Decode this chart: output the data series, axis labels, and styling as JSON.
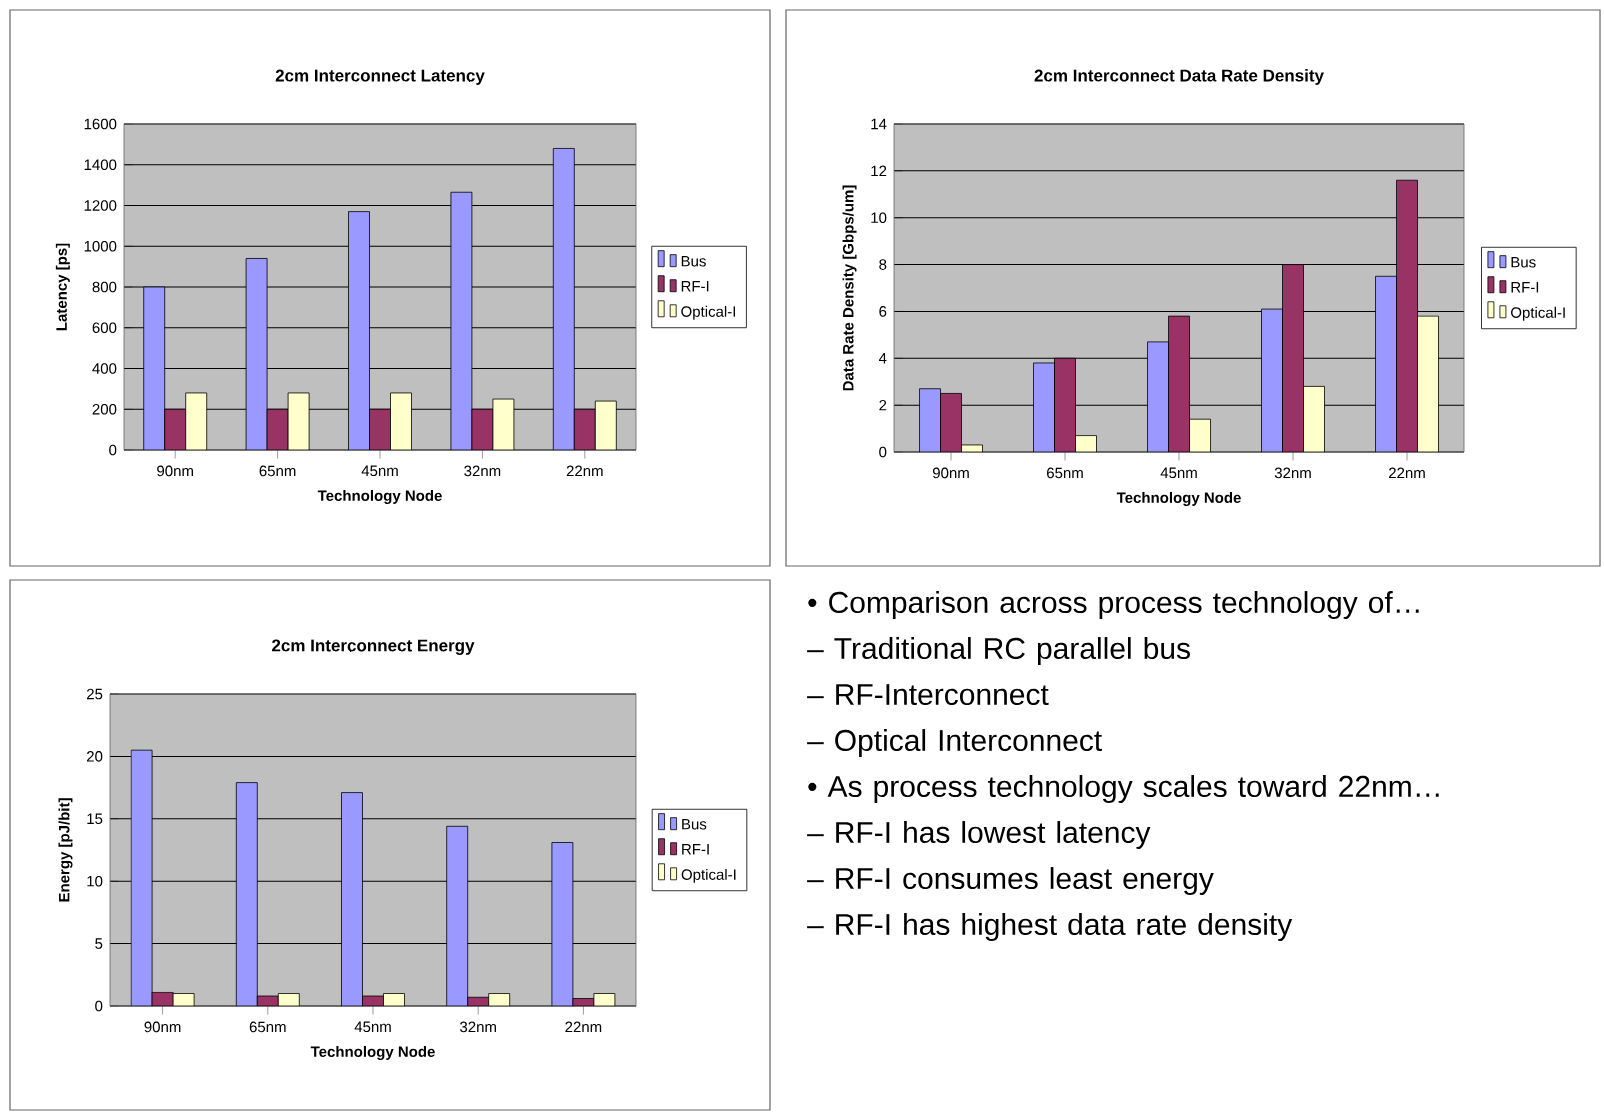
{
  "chart_data": [
    {
      "type": "bar",
      "title": "2cm Interconnect Latency",
      "xlabel": "Technology Node",
      "ylabel": "Latency [ps]",
      "categories": [
        "90nm",
        "65nm",
        "45nm",
        "32nm",
        "22nm"
      ],
      "series": [
        {
          "name": "Bus",
          "color": "#9999ff",
          "values": [
            800,
            940,
            1170,
            1265,
            1480
          ]
        },
        {
          "name": "RF-I",
          "color": "#993366",
          "values": [
            200,
            200,
            200,
            200,
            200
          ]
        },
        {
          "name": "Optical-I",
          "color": "#ffffcc",
          "values": [
            280,
            280,
            280,
            250,
            240
          ]
        }
      ],
      "ylim": [
        0,
        1600
      ],
      "yticks": [
        0,
        200,
        400,
        600,
        800,
        1000,
        1200,
        1400,
        1600
      ],
      "grid": "y",
      "legend": "right"
    },
    {
      "type": "bar",
      "title": "2cm Interconnect Data Rate Density",
      "xlabel": "Technology Node",
      "ylabel": "Data Rate Density [Gbps/um]",
      "categories": [
        "90nm",
        "65nm",
        "45nm",
        "32nm",
        "22nm"
      ],
      "series": [
        {
          "name": "Bus",
          "color": "#9999ff",
          "values": [
            2.7,
            3.8,
            4.7,
            6.1,
            7.5
          ]
        },
        {
          "name": "RF-I",
          "color": "#993366",
          "values": [
            2.5,
            4.0,
            5.8,
            8.0,
            11.6
          ]
        },
        {
          "name": "Optical-I",
          "color": "#ffffcc",
          "values": [
            0.3,
            0.7,
            1.4,
            2.8,
            5.8
          ]
        }
      ],
      "ylim": [
        0,
        14
      ],
      "yticks": [
        0,
        2,
        4,
        6,
        8,
        10,
        12,
        14
      ],
      "grid": "y",
      "legend": "right"
    },
    {
      "type": "bar",
      "title": "2cm Interconnect Energy",
      "xlabel": "Technology Node",
      "ylabel": "Energy [pJ/bit]",
      "categories": [
        "90nm",
        "65nm",
        "45nm",
        "32nm",
        "22nm"
      ],
      "series": [
        {
          "name": "Bus",
          "color": "#9999ff",
          "values": [
            20.5,
            17.9,
            17.1,
            14.4,
            13.1
          ]
        },
        {
          "name": "RF-I",
          "color": "#993366",
          "values": [
            1.1,
            0.8,
            0.8,
            0.7,
            0.6
          ]
        },
        {
          "name": "Optical-I",
          "color": "#ffffcc",
          "values": [
            1.0,
            1.0,
            1.0,
            1.0,
            1.0
          ]
        }
      ],
      "ylim": [
        0,
        25
      ],
      "yticks": [
        0,
        5,
        10,
        15,
        20,
        25
      ],
      "grid": "y",
      "legend": "right"
    },
    {
      "type": "other",
      "annotations": [
        "• Comparison across process technology of…",
        "– Traditional RC parallel bus",
        "– RF-Interconnect",
        "– Optical Interconnect",
        "• As process technology scales toward 22nm…",
        "– RF-I has lowest latency",
        "– RF-I consumes least energy",
        "– RF-I has highest data rate density"
      ]
    }
  ]
}
